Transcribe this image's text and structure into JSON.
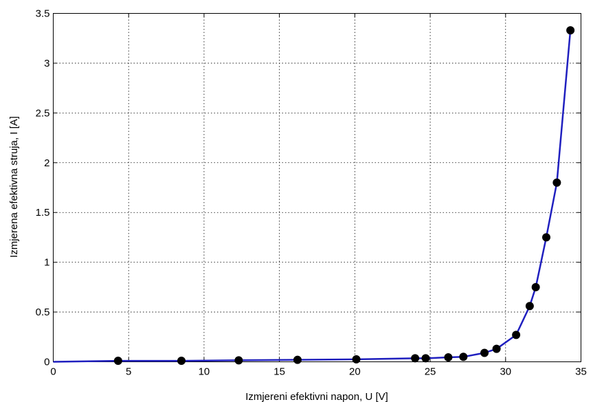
{
  "chart_data": {
    "type": "line",
    "title": "",
    "xlabel": "Izmjereni efektivni napon, U [V]",
    "ylabel": "Izmjerena efektivna struja, I [A]",
    "xlim": [
      0,
      35
    ],
    "ylim": [
      0,
      3.5
    ],
    "x_ticks": [
      0,
      5,
      10,
      15,
      20,
      25,
      30,
      35
    ],
    "y_ticks": [
      0,
      0.5,
      1,
      1.5,
      2,
      2.5,
      3,
      3.5
    ],
    "x_tick_labels": [
      "0",
      "5",
      "10",
      "15",
      "20",
      "25",
      "30",
      "35"
    ],
    "y_tick_labels": [
      "0",
      "0.5",
      "1",
      "1.5",
      "2",
      "2.5",
      "3",
      "3.5"
    ],
    "grid": true,
    "line_color": "#1f1fbf",
    "marker_color": "#000000",
    "series": [
      {
        "x": [
          0,
          4.3,
          8.5,
          12.3,
          16.2,
          20.1,
          24.0,
          24.7,
          26.2,
          27.2,
          28.6,
          29.4,
          30.7,
          31.6,
          32.0,
          32.7,
          33.4,
          34.3
        ],
        "y": [
          0.0,
          0.01,
          0.01,
          0.015,
          0.02,
          0.025,
          0.035,
          0.035,
          0.045,
          0.05,
          0.09,
          0.13,
          0.27,
          0.56,
          0.75,
          1.25,
          1.8,
          3.33
        ],
        "markers": [
          false,
          true,
          true,
          true,
          true,
          true,
          true,
          true,
          true,
          true,
          true,
          true,
          true,
          true,
          true,
          true,
          true,
          true
        ]
      }
    ]
  }
}
